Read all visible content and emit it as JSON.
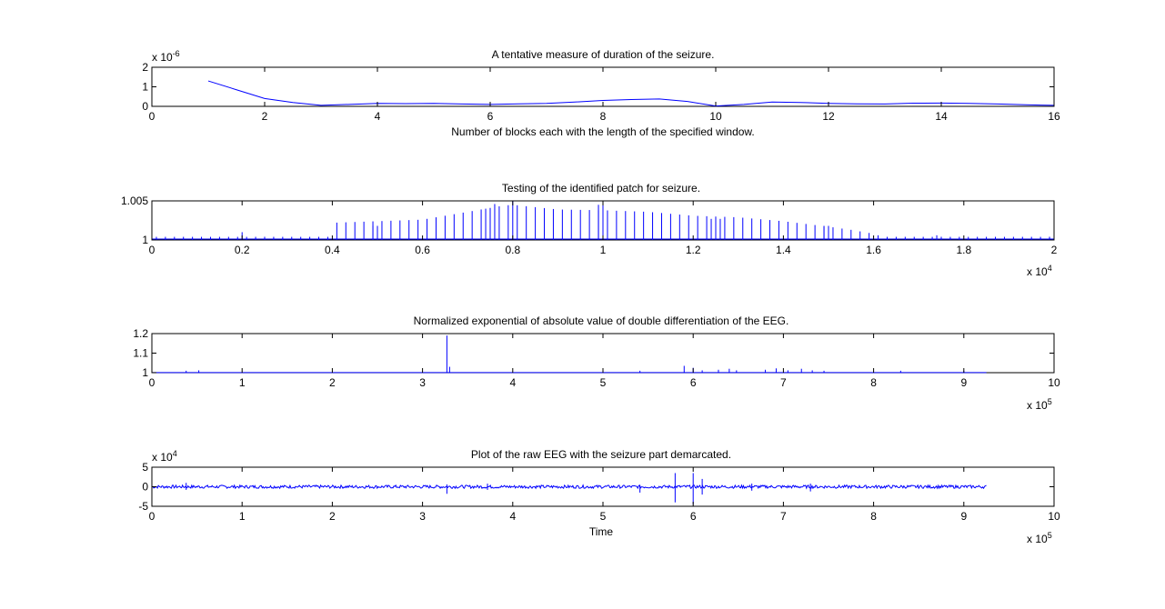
{
  "window": {
    "background": "#ffffff"
  },
  "colors": {
    "series": "#0000ff",
    "axes": "#000000"
  },
  "chart_data": [
    {
      "type": "line",
      "title": "A tentative measure of duration of the seizure.",
      "xlabel": "Number of blocks each with the length of the specified window.",
      "ylabel": "",
      "xlim": [
        0,
        16
      ],
      "ylim": [
        0,
        2
      ],
      "xticks": [
        0,
        2,
        4,
        6,
        8,
        10,
        12,
        14,
        16
      ],
      "yticks": [
        0,
        1,
        2
      ],
      "x_tick_labels": [
        "0",
        "2",
        "4",
        "6",
        "8",
        "10",
        "12",
        "14",
        "16"
      ],
      "y_tick_labels": [
        "0",
        "1",
        "2"
      ],
      "y_multiplier": "x 10",
      "y_exponent": "-6",
      "x_multiplier": "",
      "x_exponent": "",
      "grid": false,
      "series": [
        {
          "x": [
            1,
            1.5,
            2,
            2.5,
            3,
            3.5,
            4,
            4.5,
            5,
            5.5,
            6,
            6.5,
            7,
            7.5,
            8,
            8.5,
            9,
            9.5,
            10,
            10.5,
            11,
            11.5,
            12,
            12.5,
            13,
            13.5,
            14,
            14.5,
            15,
            15.5,
            16
          ],
          "y": [
            1.3,
            0.85,
            0.4,
            0.2,
            0.05,
            0.1,
            0.15,
            0.14,
            0.15,
            0.12,
            0.1,
            0.13,
            0.15,
            0.22,
            0.3,
            0.35,
            0.38,
            0.25,
            0.02,
            0.1,
            0.22,
            0.2,
            0.15,
            0.13,
            0.12,
            0.16,
            0.17,
            0.15,
            0.12,
            0.08,
            0.05
          ]
        }
      ]
    },
    {
      "type": "line",
      "title": "Testing of the identified patch for seizure.",
      "xlabel": "",
      "ylabel": "",
      "xlim": [
        0,
        20000
      ],
      "ylim": [
        1,
        1.005
      ],
      "xticks": [
        0,
        2000,
        4000,
        6000,
        8000,
        10000,
        12000,
        14000,
        16000,
        18000,
        20000
      ],
      "yticks": [
        1,
        1.005
      ],
      "x_tick_labels": [
        "0",
        "0.2",
        "0.4",
        "0.6",
        "0.8",
        "1",
        "1.2",
        "1.4",
        "1.6",
        "1.8",
        "2"
      ],
      "y_tick_labels": [
        "1",
        "1.005"
      ],
      "x_multiplier": "x 10",
      "x_exponent": "4",
      "y_multiplier": "",
      "y_exponent": "",
      "grid": false,
      "spike_envelope": {
        "x": [
          0,
          3900,
          4000,
          6000,
          7000,
          7800,
          8000,
          9000,
          10000,
          11000,
          12000,
          13000,
          14000,
          15000,
          15500,
          16000,
          16200,
          17000,
          20000
        ],
        "y": [
          1.0004,
          1.0004,
          1.0022,
          1.0026,
          1.0036,
          1.0044,
          1.0045,
          1.0039,
          1.0038,
          1.0036,
          1.0031,
          1.0029,
          1.0024,
          1.0017,
          1.0013,
          1.0008,
          1.0004,
          1.0004,
          1.0004
        ],
        "spacing": 200
      },
      "highlight_spikes": [
        {
          "x": 2000,
          "y": 1.001
        },
        {
          "x": 4900,
          "y": 1.0018
        },
        {
          "x": 5000,
          "y": 1.0018
        },
        {
          "x": 7400,
          "y": 1.004
        },
        {
          "x": 7600,
          "y": 1.0046
        },
        {
          "x": 8000,
          "y": 1.005
        },
        {
          "x": 9900,
          "y": 1.0045
        },
        {
          "x": 10000,
          "y": 1.005
        },
        {
          "x": 12400,
          "y": 1.0027
        },
        {
          "x": 12600,
          "y": 1.0027
        },
        {
          "x": 14900,
          "y": 1.0018
        },
        {
          "x": 15000,
          "y": 1.0018
        },
        {
          "x": 17400,
          "y": 1.0006
        },
        {
          "x": 19900,
          "y": 1.0004
        }
      ]
    },
    {
      "type": "line",
      "title": "Normalized exponential of absolute value of double differentiation of the EEG.",
      "xlabel": "",
      "ylabel": "",
      "xlim": [
        0,
        1000000
      ],
      "ylim": [
        1,
        1.2
      ],
      "xticks": [
        0,
        100000,
        200000,
        300000,
        400000,
        500000,
        600000,
        700000,
        800000,
        900000,
        1000000
      ],
      "yticks": [
        1,
        1.1,
        1.2
      ],
      "x_tick_labels": [
        "0",
        "1",
        "2",
        "3",
        "4",
        "5",
        "6",
        "7",
        "8",
        "9",
        "10"
      ],
      "y_tick_labels": [
        "1",
        "1.1",
        "1.2"
      ],
      "x_multiplier": "x 10",
      "x_exponent": "5",
      "y_multiplier": "",
      "y_exponent": "",
      "grid": false,
      "baseline": {
        "y": 1.0005,
        "x_end": 925000
      },
      "spikes": [
        {
          "x": 38000,
          "y": 1.01
        },
        {
          "x": 52000,
          "y": 1.012
        },
        {
          "x": 327000,
          "y": 1.19
        },
        {
          "x": 330000,
          "y": 1.03
        },
        {
          "x": 541000,
          "y": 1.01
        },
        {
          "x": 590000,
          "y": 1.035
        },
        {
          "x": 600000,
          "y": 1.025
        },
        {
          "x": 610000,
          "y": 1.012
        },
        {
          "x": 628000,
          "y": 1.015
        },
        {
          "x": 640000,
          "y": 1.02
        },
        {
          "x": 648000,
          "y": 1.012
        },
        {
          "x": 680000,
          "y": 1.015
        },
        {
          "x": 692000,
          "y": 1.022
        },
        {
          "x": 705000,
          "y": 1.012
        },
        {
          "x": 720000,
          "y": 1.02
        },
        {
          "x": 732000,
          "y": 1.012
        },
        {
          "x": 745000,
          "y": 1.01
        },
        {
          "x": 830000,
          "y": 1.01
        },
        {
          "x": 900000,
          "y": 1.01
        }
      ]
    },
    {
      "type": "line",
      "title": "Plot of the raw EEG with the seizure part demarcated.",
      "xlabel": "Time",
      "ylabel": "",
      "xlim": [
        0,
        1000000
      ],
      "ylim": [
        -50000,
        50000
      ],
      "xticks": [
        0,
        100000,
        200000,
        300000,
        400000,
        500000,
        600000,
        700000,
        800000,
        900000,
        1000000
      ],
      "yticks": [
        -50000,
        0,
        50000
      ],
      "x_tick_labels": [
        "0",
        "1",
        "2",
        "3",
        "4",
        "5",
        "6",
        "7",
        "8",
        "9",
        "10"
      ],
      "y_tick_labels": [
        "-5",
        "0",
        "5"
      ],
      "x_multiplier": "x 10",
      "x_exponent": "5",
      "y_multiplier": "x 10",
      "y_exponent": "4",
      "grid": false,
      "noise_band": {
        "x_start": 0,
        "x_end": 925000,
        "amplitude": 4000
      },
      "events": [
        {
          "x": 38000,
          "low": -8000,
          "high": 10000
        },
        {
          "x": 327000,
          "low": -18000,
          "high": 6000
        },
        {
          "x": 372000,
          "low": -8000,
          "high": 8000
        },
        {
          "x": 541000,
          "low": -15000,
          "high": 4000
        },
        {
          "x": 580000,
          "low": -40000,
          "high": 35000
        },
        {
          "x": 600000,
          "low": -45000,
          "high": 35000
        },
        {
          "x": 610000,
          "low": -20000,
          "high": 20000
        },
        {
          "x": 665000,
          "low": -10000,
          "high": 8000
        },
        {
          "x": 730000,
          "low": -12000,
          "high": 8000
        }
      ]
    }
  ]
}
